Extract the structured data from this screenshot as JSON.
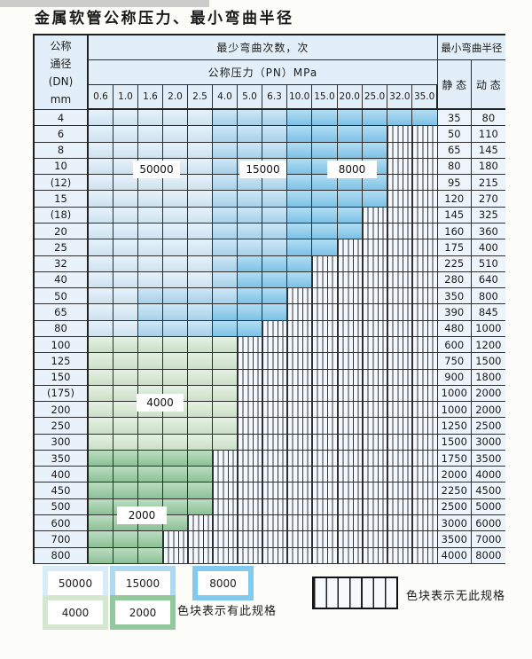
{
  "title": "金属软管公称压力、最小弯曲半径",
  "table": {
    "header": {
      "dn_label_lines": [
        "公称",
        "通径",
        "(DN)",
        "mm"
      ],
      "bend_cycles_label": "最少弯曲次数，次",
      "pressure_label": "公称压力（PN）MPa",
      "pressure_values": [
        "0.6",
        "1.0",
        "1.6",
        "2.0",
        "2.5",
        "4.0",
        "5.0",
        "6.3",
        "10.0",
        "15.0",
        "20.0",
        "25.0",
        "32.0",
        "35.0"
      ],
      "bend_radius_label": "最小弯曲半径",
      "static_label": "静 态",
      "dynamic_label": "动 态"
    },
    "band_colors": {
      "b1": "#d7ebf8",
      "b2": "#aed9f2",
      "b3": "#82c9ee",
      "g1": "#d4e8d0",
      "g2": "#92c89c"
    },
    "region_labels": [
      {
        "text": "50000",
        "band": "b1"
      },
      {
        "text": "15000",
        "band": "b2"
      },
      {
        "text": "8000",
        "band": "b3"
      },
      {
        "text": "4000",
        "band": "g1"
      },
      {
        "text": "2000",
        "band": "g2"
      }
    ],
    "rows": [
      {
        "dn": "4",
        "static": "35",
        "dynamic": "80",
        "cells": "b1:5,b2:3,b3:6"
      },
      {
        "dn": "6",
        "static": "50",
        "dynamic": "110",
        "cells": "b1:5,b2:3,b3:4,x:2"
      },
      {
        "dn": "8",
        "static": "65",
        "dynamic": "145",
        "cells": "b1:5,b2:3,b3:4,x:2"
      },
      {
        "dn": "10",
        "static": "80",
        "dynamic": "180",
        "cells": "b1:5,b2:3,b3:4,x:2"
      },
      {
        "dn": "(12)",
        "static": "95",
        "dynamic": "215",
        "cells": "b1:5,b2:3,b3:4,x:2"
      },
      {
        "dn": "15",
        "static": "120",
        "dynamic": "270",
        "cells": "b1:5,b2:3,b3:4,x:2"
      },
      {
        "dn": "(18)",
        "static": "145",
        "dynamic": "325",
        "cells": "b1:5,b2:3,b3:3,x:3"
      },
      {
        "dn": "20",
        "static": "160",
        "dynamic": "360",
        "cells": "b1:5,b2:3,b3:3,x:3"
      },
      {
        "dn": "25",
        "static": "175",
        "dynamic": "400",
        "cells": "b1:5,b2:3,b3:2,x:4"
      },
      {
        "dn": "32",
        "static": "225",
        "dynamic": "510",
        "cells": "b1:5,b2:1,b3:3,x:5"
      },
      {
        "dn": "40",
        "static": "280",
        "dynamic": "640",
        "cells": "b1:5,b2:1,b3:3,x:5"
      },
      {
        "dn": "50",
        "static": "350",
        "dynamic": "800",
        "cells": "b1:2,b2:4,b3:2,x:6"
      },
      {
        "dn": "65",
        "static": "390",
        "dynamic": "845",
        "cells": "b1:2,b2:3,b3:3,x:6"
      },
      {
        "dn": "80",
        "static": "480",
        "dynamic": "1000",
        "cells": "b1:2,b2:3,b3:2,x:7"
      },
      {
        "dn": "100",
        "static": "600",
        "dynamic": "1200",
        "cells": "g1:6,x:8"
      },
      {
        "dn": "125",
        "static": "750",
        "dynamic": "1500",
        "cells": "g1:6,x:8"
      },
      {
        "dn": "150",
        "static": "900",
        "dynamic": "1800",
        "cells": "g1:6,x:8"
      },
      {
        "dn": "(175)",
        "static": "1000",
        "dynamic": "2000",
        "cells": "g1:6,x:8"
      },
      {
        "dn": "200",
        "static": "1000",
        "dynamic": "2000",
        "cells": "g1:6,x:8"
      },
      {
        "dn": "250",
        "static": "1250",
        "dynamic": "2500",
        "cells": "g1:6,x:8"
      },
      {
        "dn": "300",
        "static": "1500",
        "dynamic": "3000",
        "cells": "g1:6,x:8"
      },
      {
        "dn": "350",
        "static": "1750",
        "dynamic": "3500",
        "cells": "g2:5,x:9"
      },
      {
        "dn": "400",
        "static": "2000",
        "dynamic": "4000",
        "cells": "g2:5,x:9"
      },
      {
        "dn": "450",
        "static": "2250",
        "dynamic": "4500",
        "cells": "g2:5,x:9"
      },
      {
        "dn": "500",
        "static": "2500",
        "dynamic": "5000",
        "cells": "g2:5,x:9"
      },
      {
        "dn": "600",
        "static": "3000",
        "dynamic": "6000",
        "cells": "g2:4,x:10"
      },
      {
        "dn": "700",
        "static": "3500",
        "dynamic": "7000",
        "cells": "g2:3,x:11"
      },
      {
        "dn": "800",
        "static": "4000",
        "dynamic": "8000",
        "cells": "g2:3,x:11"
      }
    ]
  },
  "legend": {
    "swatches": [
      {
        "text": "50000",
        "band": "b1"
      },
      {
        "text": "15000",
        "band": "b2"
      },
      {
        "text": "8000",
        "band": "b3"
      },
      {
        "text": "4000",
        "band": "g1"
      },
      {
        "text": "2000",
        "band": "g2"
      }
    ],
    "has_spec_note": "色块表示有此规格",
    "no_spec_note": "色块表示无此规格"
  }
}
